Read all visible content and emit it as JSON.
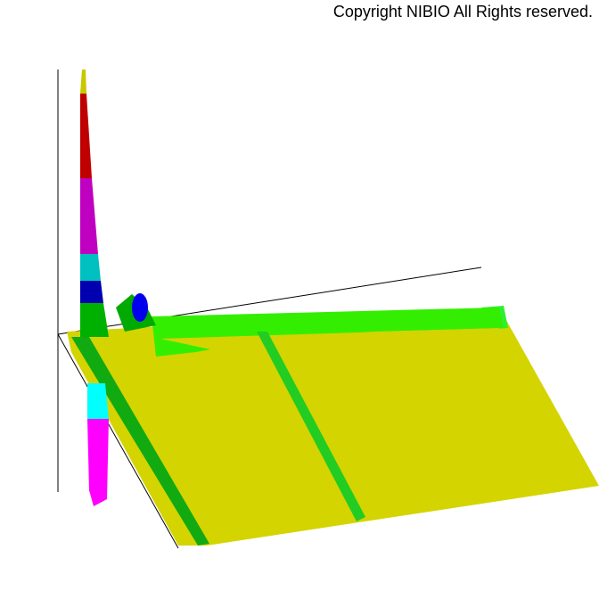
{
  "copyright": "Copyright NIBIO All Rights reserved."
}
